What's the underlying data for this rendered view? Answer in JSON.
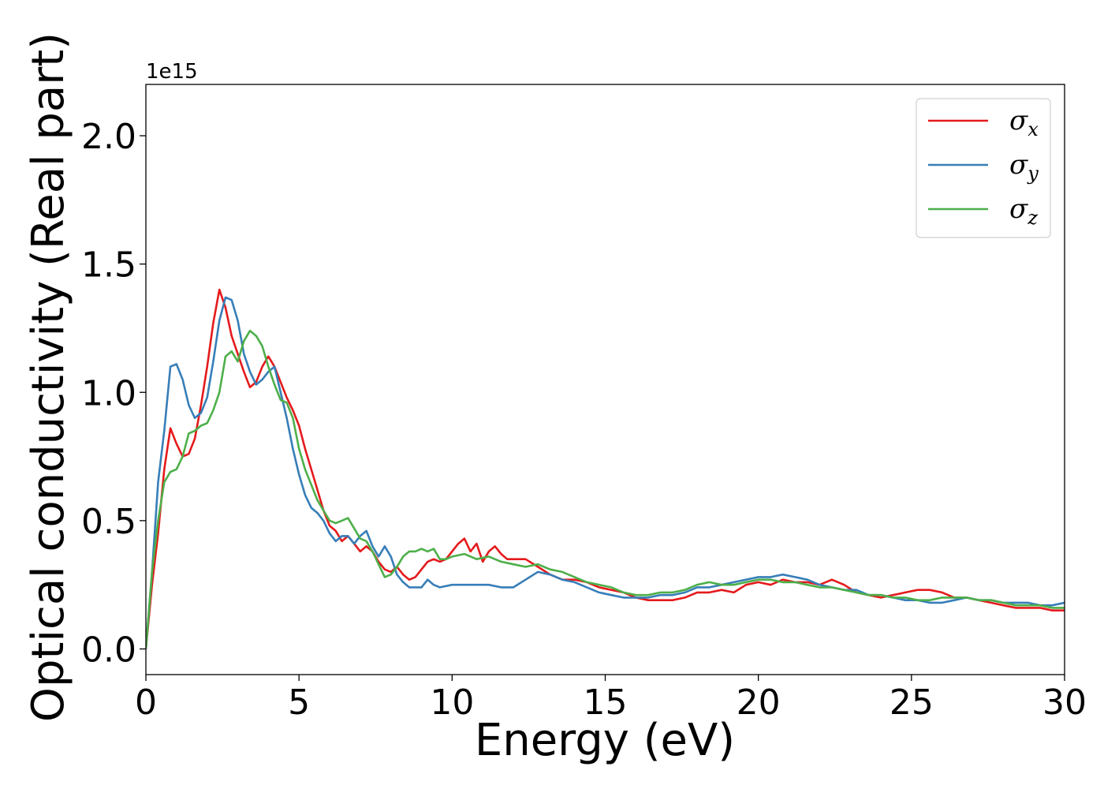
{
  "chart_data": {
    "type": "line",
    "xlabel": "Energy (eV)",
    "ylabel": "Optical conductivity (Real part)",
    "y_offset_label": "1e15",
    "xlim": [
      0,
      30
    ],
    "ylim": [
      -0.1,
      2.2
    ],
    "x_ticks": [
      0,
      5,
      10,
      15,
      20,
      25,
      30
    ],
    "x_tick_labels": [
      "0",
      "5",
      "10",
      "15",
      "20",
      "25",
      "30"
    ],
    "y_ticks": [
      0.0,
      0.5,
      1.0,
      1.5,
      2.0
    ],
    "y_tick_labels": [
      "0.0",
      "0.5",
      "1.0",
      "1.5",
      "2.0"
    ],
    "grid": false,
    "legend_position": "top-right",
    "series": [
      {
        "name": "σx",
        "symbol": "σ",
        "subscript": "x",
        "color": "#e41a1c",
        "points": [
          [
            0,
            0.0
          ],
          [
            0.2,
            0.25
          ],
          [
            0.4,
            0.45
          ],
          [
            0.6,
            0.7
          ],
          [
            0.8,
            0.86
          ],
          [
            1.0,
            0.8
          ],
          [
            1.2,
            0.75
          ],
          [
            1.4,
            0.76
          ],
          [
            1.6,
            0.82
          ],
          [
            1.8,
            0.95
          ],
          [
            2.0,
            1.1
          ],
          [
            2.2,
            1.27
          ],
          [
            2.4,
            1.4
          ],
          [
            2.6,
            1.33
          ],
          [
            2.8,
            1.22
          ],
          [
            3.0,
            1.15
          ],
          [
            3.2,
            1.08
          ],
          [
            3.4,
            1.02
          ],
          [
            3.6,
            1.04
          ],
          [
            3.8,
            1.1
          ],
          [
            4.0,
            1.14
          ],
          [
            4.2,
            1.1
          ],
          [
            4.4,
            1.04
          ],
          [
            4.6,
            0.98
          ],
          [
            4.8,
            0.93
          ],
          [
            5.0,
            0.87
          ],
          [
            5.2,
            0.78
          ],
          [
            5.4,
            0.7
          ],
          [
            5.6,
            0.62
          ],
          [
            5.8,
            0.54
          ],
          [
            6.0,
            0.48
          ],
          [
            6.2,
            0.46
          ],
          [
            6.4,
            0.42
          ],
          [
            6.6,
            0.44
          ],
          [
            6.8,
            0.41
          ],
          [
            7.0,
            0.38
          ],
          [
            7.2,
            0.4
          ],
          [
            7.4,
            0.38
          ],
          [
            7.6,
            0.34
          ],
          [
            7.8,
            0.31
          ],
          [
            8.0,
            0.3
          ],
          [
            8.2,
            0.32
          ],
          [
            8.4,
            0.29
          ],
          [
            8.6,
            0.27
          ],
          [
            8.8,
            0.28
          ],
          [
            9.0,
            0.31
          ],
          [
            9.2,
            0.34
          ],
          [
            9.4,
            0.35
          ],
          [
            9.6,
            0.34
          ],
          [
            9.8,
            0.35
          ],
          [
            10.0,
            0.38
          ],
          [
            10.2,
            0.41
          ],
          [
            10.4,
            0.43
          ],
          [
            10.6,
            0.38
          ],
          [
            10.8,
            0.41
          ],
          [
            11.0,
            0.34
          ],
          [
            11.2,
            0.38
          ],
          [
            11.4,
            0.4
          ],
          [
            11.6,
            0.37
          ],
          [
            11.8,
            0.35
          ],
          [
            12.0,
            0.35
          ],
          [
            12.4,
            0.35
          ],
          [
            12.8,
            0.32
          ],
          [
            13.2,
            0.29
          ],
          [
            13.6,
            0.27
          ],
          [
            14.0,
            0.27
          ],
          [
            14.4,
            0.26
          ],
          [
            14.8,
            0.24
          ],
          [
            15.2,
            0.23
          ],
          [
            15.6,
            0.22
          ],
          [
            16.0,
            0.2
          ],
          [
            16.4,
            0.19
          ],
          [
            16.8,
            0.19
          ],
          [
            17.2,
            0.19
          ],
          [
            17.6,
            0.2
          ],
          [
            18.0,
            0.22
          ],
          [
            18.4,
            0.22
          ],
          [
            18.8,
            0.23
          ],
          [
            19.2,
            0.22
          ],
          [
            19.6,
            0.25
          ],
          [
            20.0,
            0.26
          ],
          [
            20.4,
            0.25
          ],
          [
            20.8,
            0.27
          ],
          [
            21.2,
            0.26
          ],
          [
            21.6,
            0.26
          ],
          [
            22.0,
            0.25
          ],
          [
            22.4,
            0.27
          ],
          [
            22.8,
            0.25
          ],
          [
            23.2,
            0.22
          ],
          [
            23.6,
            0.21
          ],
          [
            24.0,
            0.2
          ],
          [
            24.4,
            0.21
          ],
          [
            24.8,
            0.22
          ],
          [
            25.2,
            0.23
          ],
          [
            25.6,
            0.23
          ],
          [
            26.0,
            0.22
          ],
          [
            26.4,
            0.2
          ],
          [
            26.8,
            0.2
          ],
          [
            27.2,
            0.19
          ],
          [
            27.6,
            0.18
          ],
          [
            28.0,
            0.17
          ],
          [
            28.4,
            0.16
          ],
          [
            28.8,
            0.16
          ],
          [
            29.2,
            0.16
          ],
          [
            29.6,
            0.15
          ],
          [
            30.0,
            0.15
          ]
        ]
      },
      {
        "name": "σy",
        "symbol": "σ",
        "subscript": "y",
        "color": "#377eb8",
        "points": [
          [
            0,
            0.0
          ],
          [
            0.2,
            0.3
          ],
          [
            0.4,
            0.65
          ],
          [
            0.6,
            0.85
          ],
          [
            0.8,
            1.1
          ],
          [
            1.0,
            1.11
          ],
          [
            1.2,
            1.05
          ],
          [
            1.4,
            0.95
          ],
          [
            1.6,
            0.9
          ],
          [
            1.8,
            0.92
          ],
          [
            2.0,
            0.98
          ],
          [
            2.2,
            1.12
          ],
          [
            2.4,
            1.28
          ],
          [
            2.6,
            1.37
          ],
          [
            2.8,
            1.36
          ],
          [
            3.0,
            1.28
          ],
          [
            3.2,
            1.15
          ],
          [
            3.4,
            1.08
          ],
          [
            3.6,
            1.03
          ],
          [
            3.8,
            1.05
          ],
          [
            4.0,
            1.08
          ],
          [
            4.2,
            1.1
          ],
          [
            4.4,
            1.0
          ],
          [
            4.6,
            0.9
          ],
          [
            4.8,
            0.78
          ],
          [
            5.0,
            0.68
          ],
          [
            5.2,
            0.6
          ],
          [
            5.4,
            0.55
          ],
          [
            5.6,
            0.53
          ],
          [
            5.8,
            0.5
          ],
          [
            6.0,
            0.45
          ],
          [
            6.2,
            0.42
          ],
          [
            6.4,
            0.44
          ],
          [
            6.6,
            0.44
          ],
          [
            6.8,
            0.41
          ],
          [
            7.0,
            0.44
          ],
          [
            7.2,
            0.46
          ],
          [
            7.4,
            0.4
          ],
          [
            7.6,
            0.36
          ],
          [
            7.8,
            0.4
          ],
          [
            8.0,
            0.36
          ],
          [
            8.2,
            0.29
          ],
          [
            8.4,
            0.26
          ],
          [
            8.6,
            0.24
          ],
          [
            8.8,
            0.24
          ],
          [
            9.0,
            0.24
          ],
          [
            9.2,
            0.27
          ],
          [
            9.4,
            0.25
          ],
          [
            9.6,
            0.24
          ],
          [
            10.0,
            0.25
          ],
          [
            10.4,
            0.25
          ],
          [
            10.8,
            0.25
          ],
          [
            11.2,
            0.25
          ],
          [
            11.6,
            0.24
          ],
          [
            12.0,
            0.24
          ],
          [
            12.4,
            0.27
          ],
          [
            12.8,
            0.3
          ],
          [
            13.2,
            0.29
          ],
          [
            13.6,
            0.27
          ],
          [
            14.0,
            0.26
          ],
          [
            14.4,
            0.24
          ],
          [
            14.8,
            0.22
          ],
          [
            15.2,
            0.21
          ],
          [
            15.6,
            0.2
          ],
          [
            16.0,
            0.2
          ],
          [
            16.4,
            0.2
          ],
          [
            16.8,
            0.21
          ],
          [
            17.2,
            0.21
          ],
          [
            17.6,
            0.22
          ],
          [
            18.0,
            0.24
          ],
          [
            18.4,
            0.24
          ],
          [
            18.8,
            0.25
          ],
          [
            19.2,
            0.26
          ],
          [
            19.6,
            0.27
          ],
          [
            20.0,
            0.28
          ],
          [
            20.4,
            0.28
          ],
          [
            20.8,
            0.29
          ],
          [
            21.2,
            0.28
          ],
          [
            21.6,
            0.27
          ],
          [
            22.0,
            0.25
          ],
          [
            22.4,
            0.24
          ],
          [
            22.8,
            0.23
          ],
          [
            23.2,
            0.23
          ],
          [
            23.6,
            0.21
          ],
          [
            24.0,
            0.21
          ],
          [
            24.4,
            0.2
          ],
          [
            24.8,
            0.19
          ],
          [
            25.2,
            0.19
          ],
          [
            25.6,
            0.18
          ],
          [
            26.0,
            0.18
          ],
          [
            26.4,
            0.19
          ],
          [
            26.8,
            0.2
          ],
          [
            27.2,
            0.19
          ],
          [
            27.6,
            0.19
          ],
          [
            28.0,
            0.18
          ],
          [
            28.4,
            0.18
          ],
          [
            28.8,
            0.18
          ],
          [
            29.2,
            0.17
          ],
          [
            29.6,
            0.17
          ],
          [
            30.0,
            0.18
          ]
        ]
      },
      {
        "name": "σz",
        "symbol": "σ",
        "subscript": "z",
        "color": "#4daf4a",
        "points": [
          [
            0,
            0.0
          ],
          [
            0.2,
            0.3
          ],
          [
            0.4,
            0.5
          ],
          [
            0.6,
            0.65
          ],
          [
            0.8,
            0.69
          ],
          [
            1.0,
            0.7
          ],
          [
            1.2,
            0.75
          ],
          [
            1.4,
            0.84
          ],
          [
            1.6,
            0.85
          ],
          [
            1.8,
            0.87
          ],
          [
            2.0,
            0.88
          ],
          [
            2.2,
            0.93
          ],
          [
            2.4,
            1.0
          ],
          [
            2.6,
            1.14
          ],
          [
            2.8,
            1.16
          ],
          [
            3.0,
            1.12
          ],
          [
            3.2,
            1.2
          ],
          [
            3.4,
            1.24
          ],
          [
            3.6,
            1.22
          ],
          [
            3.8,
            1.18
          ],
          [
            4.0,
            1.1
          ],
          [
            4.2,
            1.03
          ],
          [
            4.4,
            0.97
          ],
          [
            4.6,
            0.96
          ],
          [
            4.8,
            0.9
          ],
          [
            5.0,
            0.78
          ],
          [
            5.2,
            0.7
          ],
          [
            5.4,
            0.64
          ],
          [
            5.6,
            0.58
          ],
          [
            5.8,
            0.54
          ],
          [
            6.0,
            0.5
          ],
          [
            6.2,
            0.49
          ],
          [
            6.4,
            0.5
          ],
          [
            6.6,
            0.51
          ],
          [
            6.8,
            0.47
          ],
          [
            7.0,
            0.43
          ],
          [
            7.2,
            0.42
          ],
          [
            7.4,
            0.38
          ],
          [
            7.6,
            0.33
          ],
          [
            7.8,
            0.28
          ],
          [
            8.0,
            0.29
          ],
          [
            8.2,
            0.32
          ],
          [
            8.4,
            0.36
          ],
          [
            8.6,
            0.38
          ],
          [
            8.8,
            0.38
          ],
          [
            9.0,
            0.39
          ],
          [
            9.2,
            0.38
          ],
          [
            9.4,
            0.39
          ],
          [
            9.6,
            0.35
          ],
          [
            9.8,
            0.35
          ],
          [
            10.0,
            0.36
          ],
          [
            10.4,
            0.37
          ],
          [
            10.8,
            0.35
          ],
          [
            11.2,
            0.36
          ],
          [
            11.6,
            0.34
          ],
          [
            12.0,
            0.33
          ],
          [
            12.4,
            0.32
          ],
          [
            12.8,
            0.33
          ],
          [
            13.2,
            0.31
          ],
          [
            13.6,
            0.3
          ],
          [
            14.0,
            0.28
          ],
          [
            14.4,
            0.26
          ],
          [
            14.8,
            0.25
          ],
          [
            15.2,
            0.24
          ],
          [
            15.6,
            0.22
          ],
          [
            16.0,
            0.21
          ],
          [
            16.4,
            0.21
          ],
          [
            16.8,
            0.22
          ],
          [
            17.2,
            0.22
          ],
          [
            17.6,
            0.23
          ],
          [
            18.0,
            0.25
          ],
          [
            18.4,
            0.26
          ],
          [
            18.8,
            0.25
          ],
          [
            19.2,
            0.25
          ],
          [
            19.6,
            0.26
          ],
          [
            20.0,
            0.27
          ],
          [
            20.4,
            0.27
          ],
          [
            20.8,
            0.26
          ],
          [
            21.2,
            0.26
          ],
          [
            21.6,
            0.25
          ],
          [
            22.0,
            0.24
          ],
          [
            22.4,
            0.24
          ],
          [
            22.8,
            0.23
          ],
          [
            23.2,
            0.22
          ],
          [
            23.6,
            0.21
          ],
          [
            24.0,
            0.21
          ],
          [
            24.4,
            0.2
          ],
          [
            24.8,
            0.2
          ],
          [
            25.2,
            0.19
          ],
          [
            25.6,
            0.19
          ],
          [
            26.0,
            0.2
          ],
          [
            26.4,
            0.2
          ],
          [
            26.8,
            0.2
          ],
          [
            27.2,
            0.19
          ],
          [
            27.6,
            0.19
          ],
          [
            28.0,
            0.18
          ],
          [
            28.4,
            0.17
          ],
          [
            28.8,
            0.17
          ],
          [
            29.2,
            0.17
          ],
          [
            29.6,
            0.16
          ],
          [
            30.0,
            0.16
          ]
        ]
      }
    ]
  }
}
